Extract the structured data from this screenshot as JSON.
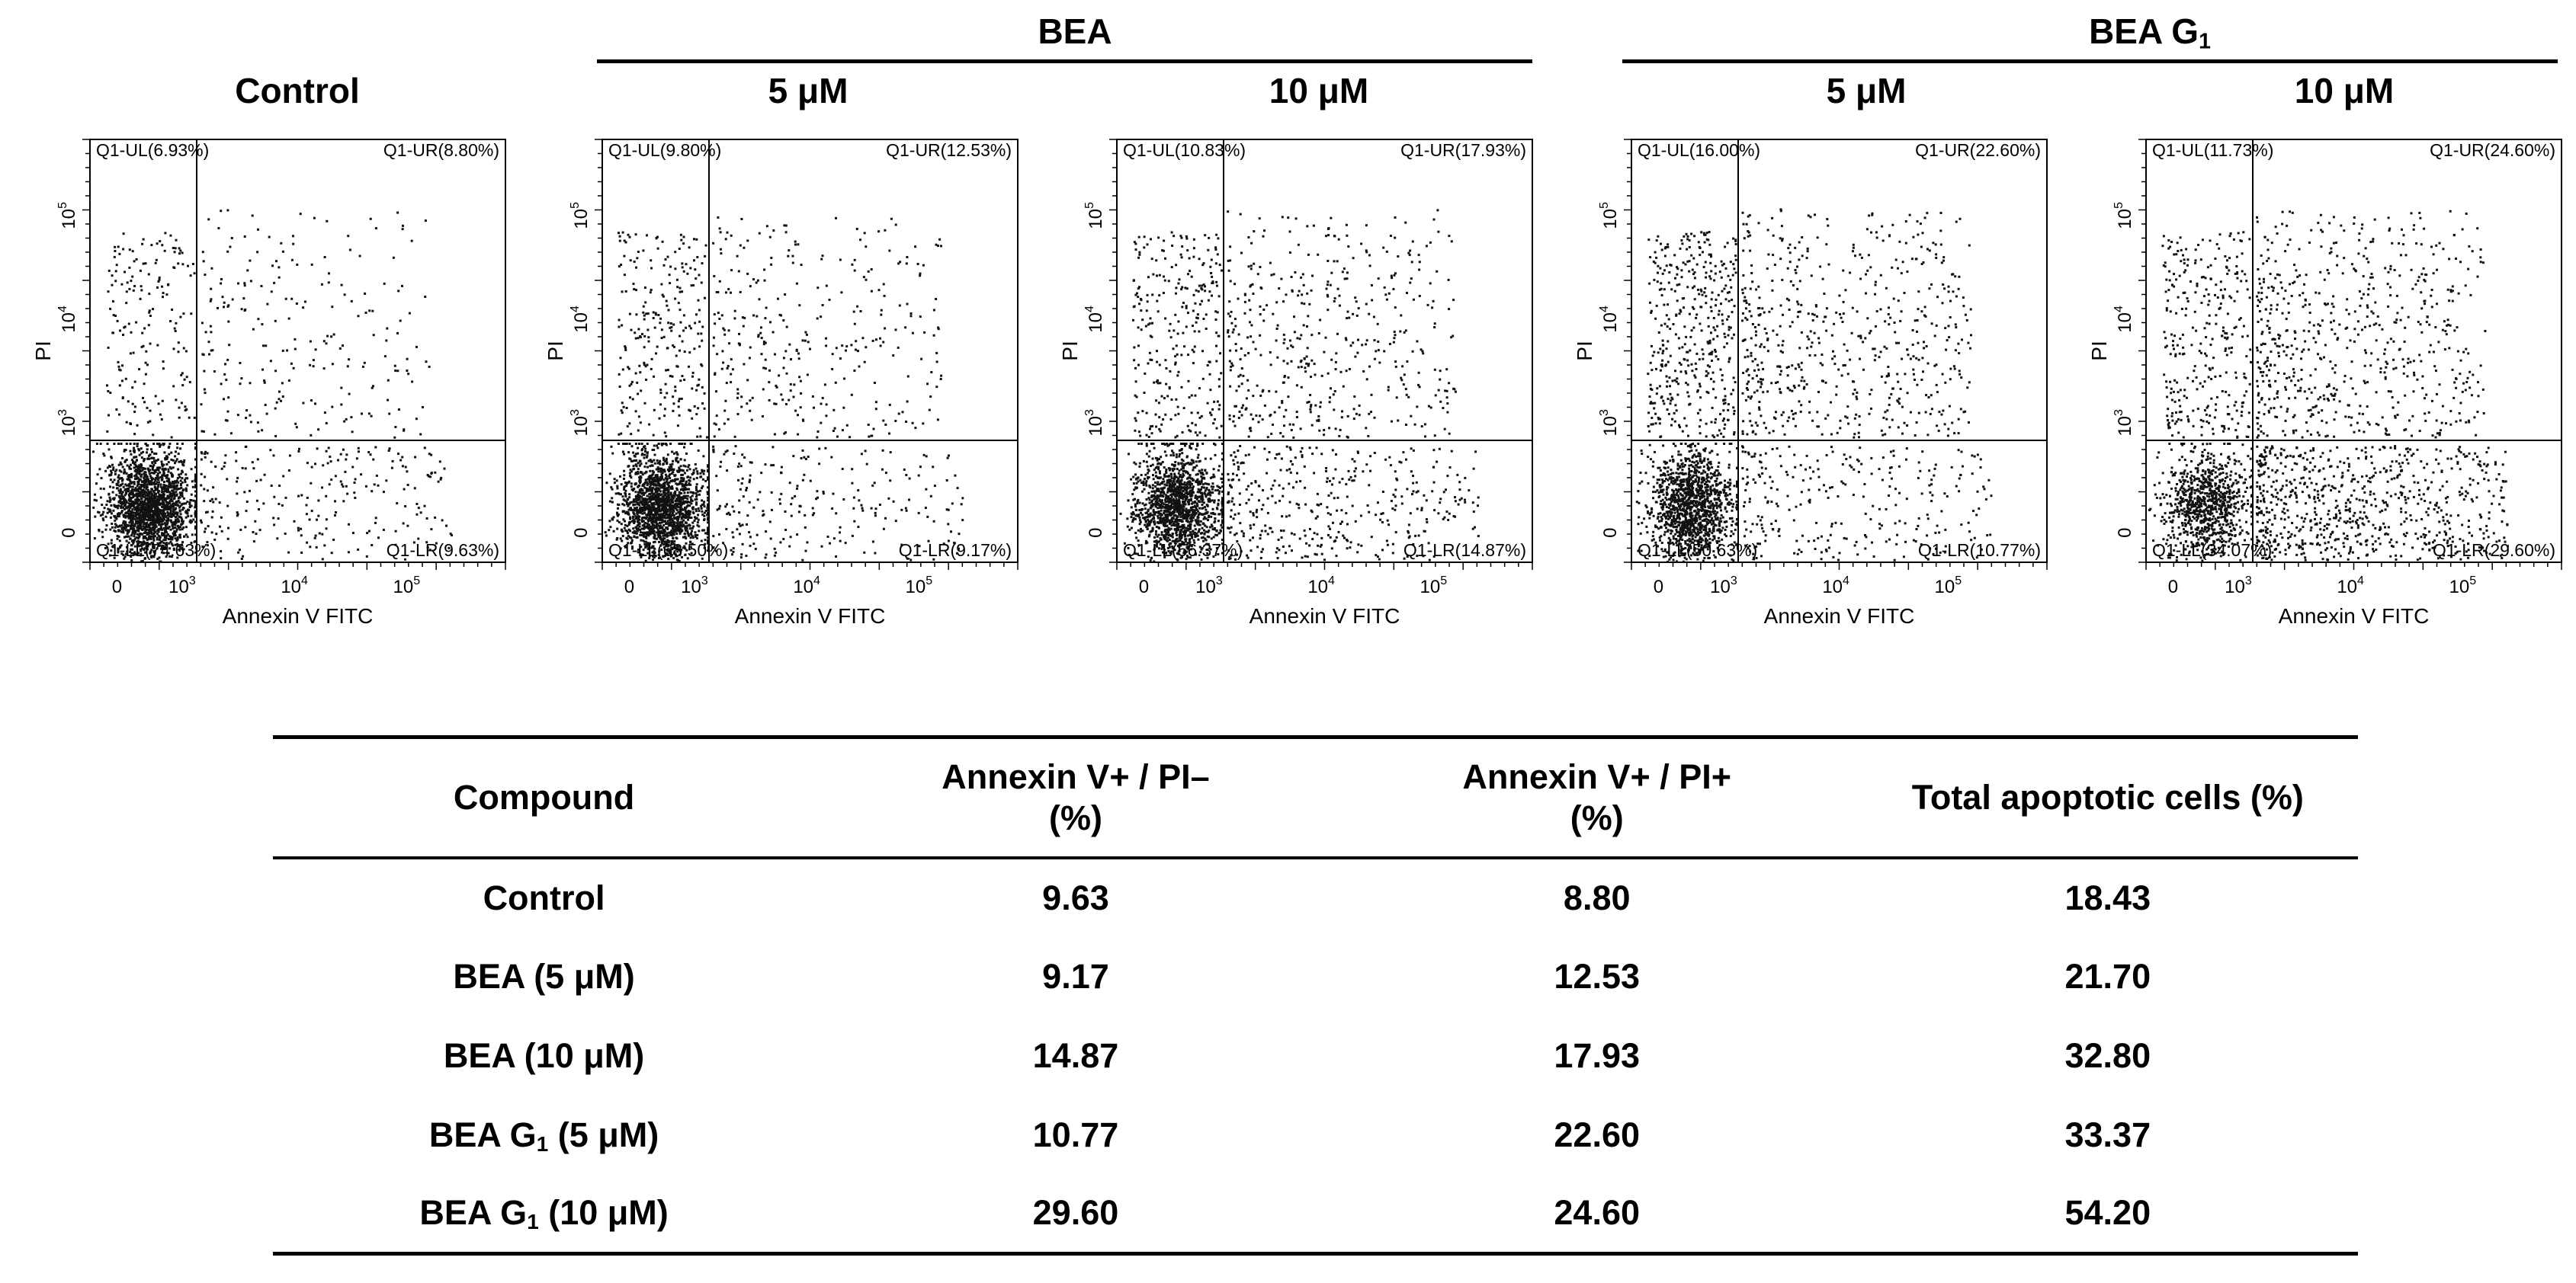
{
  "group_headers": {
    "control": "Control",
    "bea": "BEA",
    "bea_g": {
      "main": "BEA G",
      "sub": "1"
    }
  },
  "conc_labels": [
    "5 μM",
    "10 μM",
    "5 μM",
    "10 μM"
  ],
  "chart_data": [
    {
      "type": "scatter",
      "panel": "Control",
      "xlabel": "Annexin V FITC",
      "ylabel": "PI",
      "x_ticks": [
        "0",
        "10^3",
        "10^4",
        "10^5"
      ],
      "y_ticks": [
        "0",
        "10^3",
        "10^4",
        "10^5"
      ],
      "scale": "biexponential (log with linear region near 0)",
      "quadrants": {
        "UL": "Q1-UL(6.93%)",
        "UR": "Q1-UR(8.80%)",
        "LL": "Q1-LL(74.63%)",
        "LR": "Q1-LR(9.63%)"
      }
    },
    {
      "type": "scatter",
      "panel": "BEA 5 μM",
      "xlabel": "Annexin V FITC",
      "ylabel": "PI",
      "x_ticks": [
        "0",
        "10^3",
        "10^4",
        "10^5"
      ],
      "y_ticks": [
        "0",
        "10^3",
        "10^4",
        "10^5"
      ],
      "scale": "biexponential (log with linear region near 0)",
      "quadrants": {
        "UL": "Q1-UL(9.80%)",
        "UR": "Q1-UR(12.53%)",
        "LL": "Q1-LL(68.50%)",
        "LR": "Q1-LR(9.17%)"
      }
    },
    {
      "type": "scatter",
      "panel": "BEA 10 μM",
      "xlabel": "Annexin V FITC",
      "ylabel": "PI",
      "x_ticks": [
        "0",
        "10^3",
        "10^4",
        "10^5"
      ],
      "y_ticks": [
        "0",
        "10^3",
        "10^4",
        "10^5"
      ],
      "scale": "biexponential (log with linear region near 0)",
      "quadrants": {
        "UL": "Q1-UL(10.83%)",
        "UR": "Q1-UR(17.93%)",
        "LL": "Q1-LL(56.37%)",
        "LR": "Q1-LR(14.87%)"
      }
    },
    {
      "type": "scatter",
      "panel": "BEA G1 5 μM",
      "xlabel": "Annexin V FITC",
      "ylabel": "PI",
      "x_ticks": [
        "0",
        "10^3",
        "10^4",
        "10^5"
      ],
      "y_ticks": [
        "0",
        "10^3",
        "10^4",
        "10^5"
      ],
      "scale": "biexponential (log with linear region near 0)",
      "quadrants": {
        "UL": "Q1-UL(16.00%)",
        "UR": "Q1-UR(22.60%)",
        "LL": "Q1-LL(50.63%)",
        "LR": "Q1-LR(10.77%)"
      }
    },
    {
      "type": "scatter",
      "panel": "BEA G1 10 μM",
      "xlabel": "Annexin V FITC",
      "ylabel": "PI",
      "x_ticks": [
        "0",
        "10^3",
        "10^4",
        "10^5"
      ],
      "y_ticks": [
        "0",
        "10^3",
        "10^4",
        "10^5"
      ],
      "scale": "biexponential (log with linear region near 0)",
      "quadrants": {
        "UL": "Q1-UL(11.73%)",
        "UR": "Q1-UR(24.60%)",
        "LL": "Q1-LL(34.07%)",
        "LR": "Q1-LR(29.60%)"
      }
    },
    {
      "type": "table",
      "columns": [
        "Compound",
        "Annexin V+ / PI– (%)",
        "Annexin V+ / PI+ (%)",
        "Total apoptotic cells (%)"
      ],
      "rows": [
        [
          "Control",
          "9.63",
          "8.80",
          "18.43"
        ],
        [
          "BEA (5 μM)",
          "9.17",
          "12.53",
          "21.70"
        ],
        [
          "BEA (10 μM)",
          "14.87",
          "17.93",
          "32.80"
        ],
        [
          "BEA G1 (5 μM)",
          "10.77",
          "22.60",
          "33.37"
        ],
        [
          "BEA G1 (10 μM)",
          "29.60",
          "24.60",
          "54.20"
        ]
      ]
    }
  ],
  "table": {
    "headers": {
      "compound": "Compound",
      "early": {
        "line1": "Annexin V+ / PI–",
        "line2": "(%)"
      },
      "late": {
        "line1": "Annexin V+ / PI+",
        "line2": "(%)"
      },
      "total": "Total apoptotic cells (%)"
    },
    "rows": [
      {
        "pre": "Control",
        "sub": "",
        "post": "",
        "early": "9.63",
        "late": "8.80",
        "total": "18.43"
      },
      {
        "pre": "BEA (5 μM)",
        "sub": "",
        "post": "",
        "early": "9.17",
        "late": "12.53",
        "total": "21.70"
      },
      {
        "pre": "BEA (10 μM)",
        "sub": "",
        "post": "",
        "early": "14.87",
        "late": "17.93",
        "total": "32.80"
      },
      {
        "pre": "BEA G",
        "sub": "1",
        "post": " (5 μM)",
        "early": "10.77",
        "late": "22.60",
        "total": "33.37"
      },
      {
        "pre": "BEA G",
        "sub": "1",
        "post": " (10 μM)",
        "early": "29.60",
        "late": "24.60",
        "total": "54.20"
      }
    ]
  }
}
